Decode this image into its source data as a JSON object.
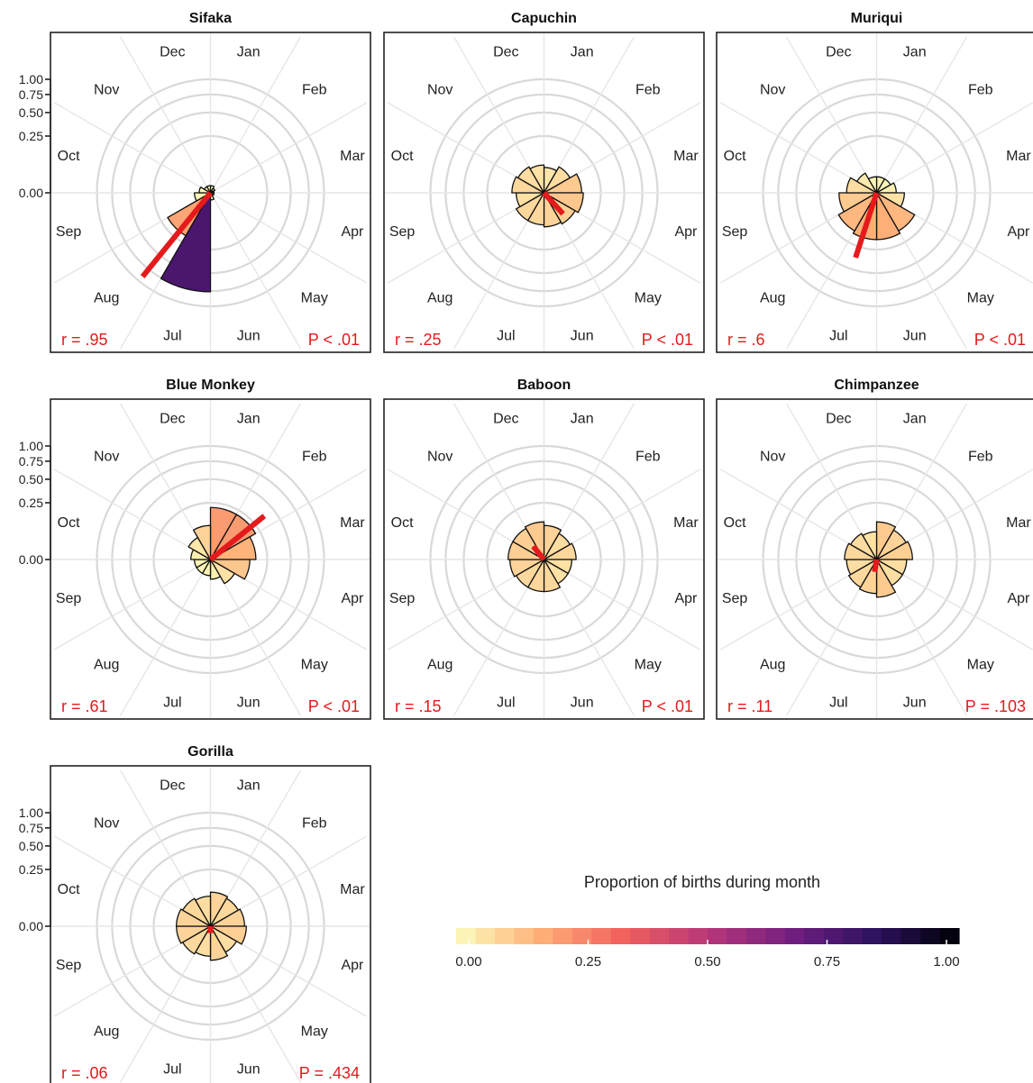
{
  "chart_data": {
    "type": "rose",
    "months": [
      "Jan",
      "Feb",
      "Mar",
      "Apr",
      "May",
      "Jun",
      "Jul",
      "Aug",
      "Sep",
      "Oct",
      "Nov",
      "Dec"
    ],
    "radial_ticks": [
      "1.00",
      "0.75",
      "0.50",
      "0.25",
      "0.00"
    ],
    "radial_tick_values": [
      1.0,
      0.75,
      0.5,
      0.25,
      0.0
    ],
    "colors": {
      "mean_vector": "#e41a1c",
      "frame": "#222222",
      "grid": "#d9d9d9"
    },
    "panels": [
      {
        "title": "Sifaka",
        "values": [
          0.004,
          0.002,
          0.001,
          0.001,
          0.001,
          0.004,
          0.76,
          0.19,
          0.02,
          0.01,
          0.004,
          0.004
        ],
        "mean_dir_month": 7.3,
        "mean_r": 0.95,
        "r_label": "r = .95",
        "p_label": "P < .01"
      },
      {
        "title": "Capuchin",
        "values": [
          0.05,
          0.07,
          0.11,
          0.12,
          0.1,
          0.09,
          0.08,
          0.08,
          0.06,
          0.08,
          0.07,
          0.06
        ],
        "mean_dir_month": 4.6,
        "mean_r": 0.25,
        "r_label": "r = .25",
        "p_label": "P < .01"
      },
      {
        "title": "Muriqui",
        "values": [
          0.02,
          0.02,
          0.03,
          0.06,
          0.15,
          0.17,
          0.17,
          0.15,
          0.11,
          0.07,
          0.04,
          0.02
        ],
        "mean_dir_month": 6.6,
        "mean_r": 0.6,
        "r_label": "r = .6",
        "p_label": "P < .01"
      },
      {
        "title": "Blue Monkey",
        "values": [
          0.21,
          0.21,
          0.16,
          0.12,
          0.06,
          0.03,
          0.02,
          0.02,
          0.02,
          0.03,
          0.05,
          0.09
        ],
        "mean_dir_month": 1.7,
        "mean_r": 0.61,
        "r_label": "r = .61",
        "p_label": "P < .01"
      },
      {
        "title": "Baboon",
        "values": [
          0.09,
          0.07,
          0.08,
          0.06,
          0.06,
          0.08,
          0.08,
          0.08,
          0.09,
          0.1,
          0.1,
          0.11
        ],
        "mean_dir_month": 10.7,
        "mean_r": 0.15,
        "r_label": "r = .15",
        "p_label": "P < .01"
      },
      {
        "title": "Chimpanzee",
        "values": [
          0.11,
          0.09,
          0.1,
          0.07,
          0.07,
          0.11,
          0.09,
          0.08,
          0.07,
          0.08,
          0.07,
          0.06
        ],
        "mean_dir_month": 6.3,
        "mean_r": 0.11,
        "r_label": "r = .11",
        "p_label": "P = .103"
      },
      {
        "title": "Gorilla",
        "values": [
          0.09,
          0.08,
          0.09,
          0.1,
          0.07,
          0.09,
          0.07,
          0.08,
          0.09,
          0.09,
          0.08,
          0.07
        ],
        "mean_dir_month": 6.0,
        "mean_r": 0.06,
        "r_label": "r = .06",
        "p_label": "P = .434"
      }
    ],
    "legend": {
      "title": "Proportion of births during month",
      "tick_labels": [
        "0.00",
        "0.25",
        "0.50",
        "0.75",
        "1.00"
      ],
      "tick_values": [
        0,
        0.25,
        0.5,
        0.75,
        1.0
      ],
      "color_stops": [
        "#fcfdbf",
        "#feb078",
        "#f1605d",
        "#b73779",
        "#721f81",
        "#2c115f",
        "#000004"
      ]
    }
  }
}
